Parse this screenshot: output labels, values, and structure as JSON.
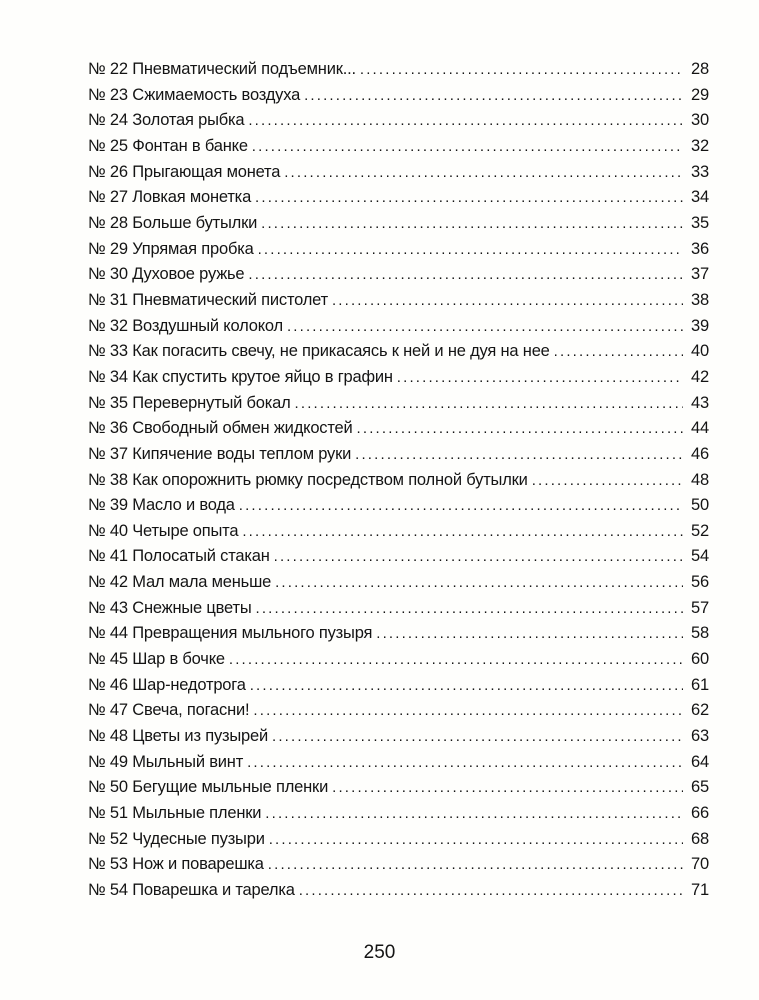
{
  "toc": [
    {
      "title": "№ 22 Пневматический подъемник...",
      "page": "28"
    },
    {
      "title": "№ 23 Сжимаемость воздуха",
      "page": "29"
    },
    {
      "title": "№ 24 Золотая рыбка",
      "page": "30"
    },
    {
      "title": "№ 25 Фонтан в банке",
      "page": "32"
    },
    {
      "title": "№ 26 Прыгающая монета",
      "page": "33"
    },
    {
      "title": "№ 27 Ловкая монетка",
      "page": "34"
    },
    {
      "title": "№ 28 Больше бутылки",
      "page": "35"
    },
    {
      "title": "№ 29 Упрямая пробка",
      "page": "36"
    },
    {
      "title": "№ 30 Духовое ружье",
      "page": "37"
    },
    {
      "title": "№ 31 Пневматический пистолет",
      "page": "38"
    },
    {
      "title": "№ 32 Воздушный колокол",
      "page": "39"
    },
    {
      "title": "№ 33 Как погасить свечу, не прикасаясь к ней и не дуя на нее",
      "page": "40"
    },
    {
      "title": "№ 34 Как спустить крутое яйцо в графин",
      "page": "42"
    },
    {
      "title": "№ 35 Перевернутый бокал",
      "page": "43"
    },
    {
      "title": "№ 36 Свободный обмен жидкостей",
      "page": "44"
    },
    {
      "title": "№ 37 Кипячение воды теплом руки",
      "page": "46"
    },
    {
      "title": "№ 38 Как опорожнить рюмку посредством полной бутылки",
      "page": "48"
    },
    {
      "title": "№ 39 Масло и вода",
      "page": "50"
    },
    {
      "title": "№ 40 Четыре опыта",
      "page": "52"
    },
    {
      "title": "№ 41 Полосатый стакан",
      "page": "54"
    },
    {
      "title": "№ 42 Мал мала меньше",
      "page": "56"
    },
    {
      "title": "№ 43 Снежные цветы",
      "page": "57"
    },
    {
      "title": "№ 44 Превращения мыльного пузыря",
      "page": "58"
    },
    {
      "title": "№ 45 Шар в бочке",
      "page": "60"
    },
    {
      "title": "№ 46 Шар-недотрога",
      "page": "61"
    },
    {
      "title": "№ 47 Свеча, погасни!",
      "page": "62"
    },
    {
      "title": "№ 48 Цветы из пузырей",
      "page": "63"
    },
    {
      "title": "№ 49 Мыльный винт",
      "page": "64"
    },
    {
      "title": "№ 50 Бегущие мыльные пленки",
      "page": "65"
    },
    {
      "title": "№ 51 Мыльные пленки",
      "page": "66"
    },
    {
      "title": "№ 52 Чудесные пузыри",
      "page": "68"
    },
    {
      "title": "№ 53 Нож и поварешка",
      "page": "70"
    },
    {
      "title": "№ 54 Поварешка и тарелка",
      "page": "71"
    }
  ],
  "page_number": "250"
}
